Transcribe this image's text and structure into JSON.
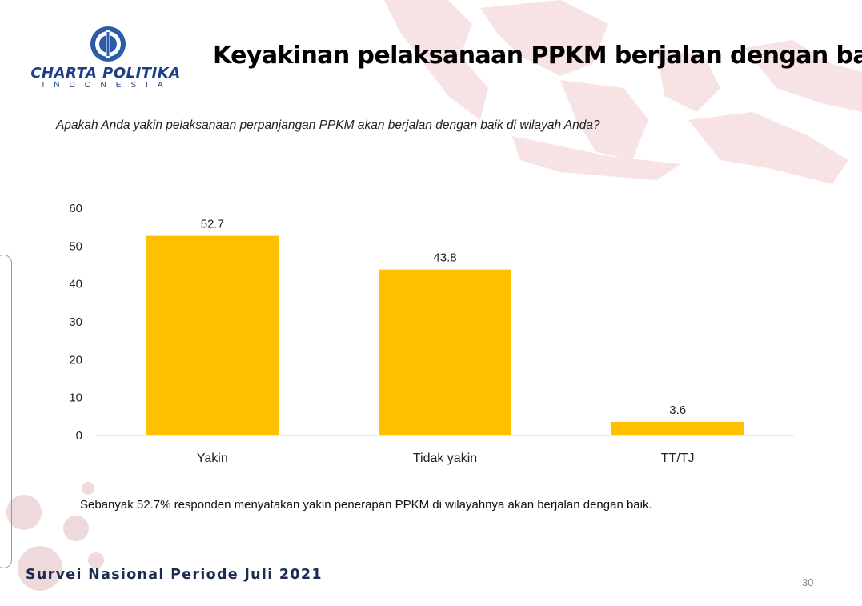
{
  "header": {
    "logo_name": "CHARTA POLITIKA",
    "logo_sub": "INDONESIA",
    "title": "Keyakinan pelaksanaan PPKM berjalan dengan baik"
  },
  "question": "Apakah Anda yakin pelaksanaan perpanjangan PPKM akan berjalan dengan baik di wilayah Anda?",
  "caption": "Sebanyak 52.7% responden menyatakan yakin penerapan PPKM di wilayahnya akan berjalan dengan baik.",
  "footer": {
    "survey": "Survei Nasional Periode Juli 2021",
    "page_number": "30"
  },
  "colors": {
    "bar": "#FFC000",
    "logo": "#1c3f85",
    "map": "#f4d6d9"
  },
  "chart_data": {
    "type": "bar",
    "categories": [
      "Yakin",
      "Tidak yakin",
      "TT/TJ"
    ],
    "values": [
      52.7,
      43.8,
      3.6
    ],
    "data_labels": [
      "52.7",
      "43.8",
      "3.6"
    ],
    "yticks": [
      0,
      10,
      20,
      30,
      40,
      50,
      60
    ],
    "ylim": [
      0,
      60
    ],
    "title": "",
    "xlabel": "",
    "ylabel": "",
    "grid": false,
    "legend": "none"
  }
}
